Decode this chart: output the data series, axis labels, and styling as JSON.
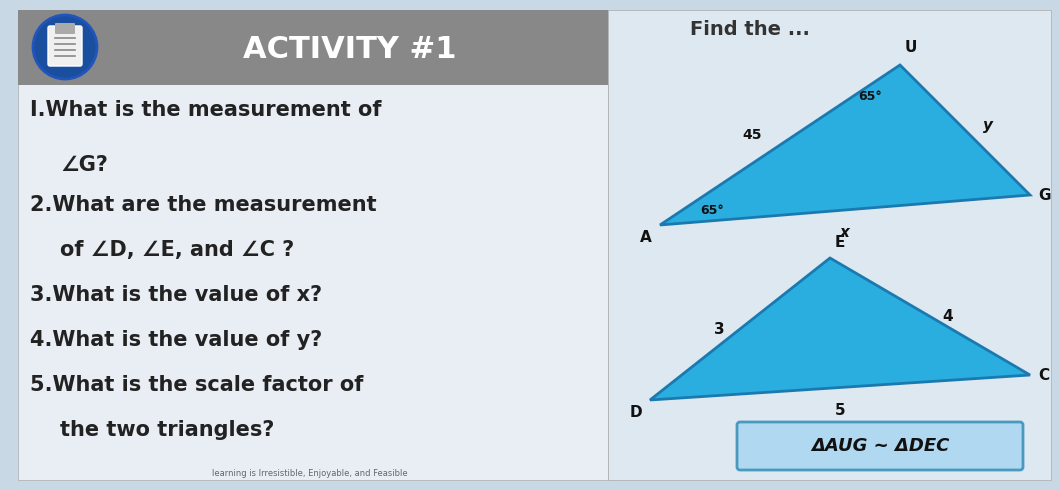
{
  "bg_color": "#c8d8e4",
  "left_panel_bg": "#e8eef4",
  "header_color": "#888888",
  "header_text": "ACTIVITY #1",
  "icon_color": "#1a4fa0",
  "right_bg": "#dde8f0",
  "questions": [
    "I.What is the measurement of",
    "∠G?",
    "2.What are the measurement",
    "of ∠D, ∠E, and ∠C ?",
    "3.What is the value of x?",
    "4.What is the value of y?",
    "5.What is the scale factor of",
    "the two triangles?"
  ],
  "tri1_color": "#2aaee0",
  "tri1_edge": "#1a7ab0",
  "tri2_color": "#2aaee0",
  "tri2_edge": "#1a7ab0",
  "sim_box_color": "#b0d8f0",
  "sim_box_edge": "#4a9ac0",
  "sim_text": "ΔAUG ~ ΔDEC",
  "find_text": "Find the ..."
}
